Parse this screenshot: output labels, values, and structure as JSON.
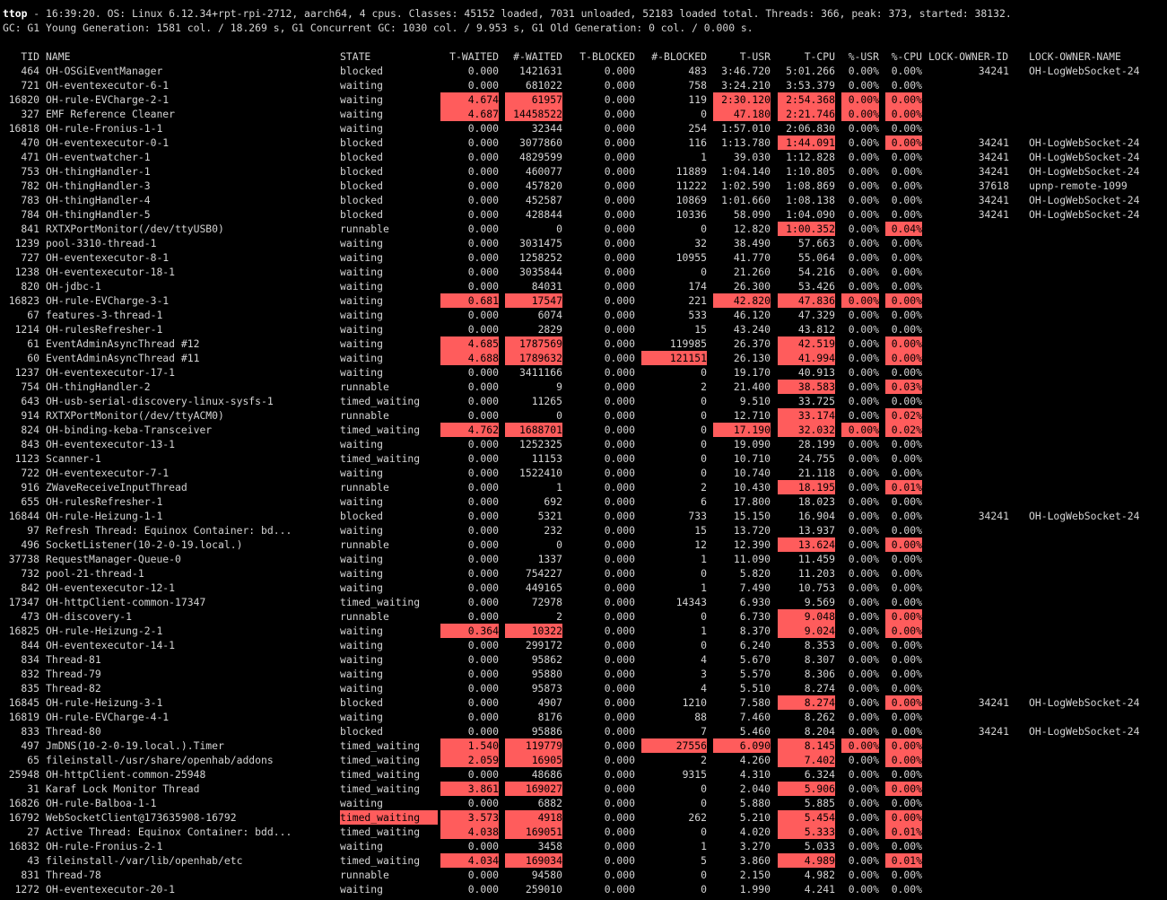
{
  "header": {
    "line1_prog": "ttop",
    "line1_rest": " - 16:39:20. OS: Linux 6.12.34+rpt-rpi-2712, aarch64, 4 cpus. Classes: 45152 loaded, 7031 unloaded, 52183 loaded total. Threads: 366, peak: 373, started: 38132.",
    "line2": "GC: G1 Young Generation: 1581 col. / 18.269 s, G1 Concurrent GC: 1030 col. / 9.953 s, G1 Old Generation: 0 col. / 0.000 s."
  },
  "columns": [
    "TID",
    "NAME",
    "STATE",
    "T-WAITED",
    "#-WAITED",
    "T-BLOCKED",
    "#-BLOCKED",
    "T-USR",
    "T-CPU",
    "%-USR",
    "%-CPU",
    "LOCK-OWNER-ID",
    "LOCK-OWNER-NAME"
  ],
  "highlight_color": "#ff5c5c",
  "rows": [
    [
      "464",
      "OH-OSGiEventManager",
      "blocked",
      "0.000",
      "1421631",
      "0.000",
      "483",
      "3:46.720",
      "5:01.266",
      "0.00%",
      "0.00%",
      "34241",
      "OH-LogWebSocket-24"
    ],
    [
      "721",
      "OH-eventexecutor-6-1",
      "waiting",
      "0.000",
      "681022",
      "0.000",
      "758",
      "3:24.210",
      "3:53.379",
      "0.00%",
      "0.00%",
      "",
      ""
    ],
    [
      "16820",
      "OH-rule-EVCharge-2-1",
      "waiting",
      "4.674",
      "61957",
      "0.000",
      "119",
      "2:30.120",
      "2:54.368",
      "0.00%",
      "0.00%",
      "",
      ""
    ],
    [
      "327",
      "EMF Reference Cleaner",
      "waiting",
      "4.687",
      "14458522",
      "0.000",
      "0",
      "47.180",
      "2:21.746",
      "0.00%",
      "0.00%",
      "",
      ""
    ],
    [
      "16818",
      "OH-rule-Fronius-1-1",
      "waiting",
      "0.000",
      "32344",
      "0.000",
      "254",
      "1:57.010",
      "2:06.830",
      "0.00%",
      "0.00%",
      "",
      ""
    ],
    [
      "470",
      "OH-eventexecutor-0-1",
      "blocked",
      "0.000",
      "3077860",
      "0.000",
      "116",
      "1:13.780",
      "1:44.091",
      "0.00%",
      "0.00%",
      "34241",
      "OH-LogWebSocket-24"
    ],
    [
      "471",
      "OH-eventwatcher-1",
      "blocked",
      "0.000",
      "4829599",
      "0.000",
      "1",
      "39.030",
      "1:12.828",
      "0.00%",
      "0.00%",
      "34241",
      "OH-LogWebSocket-24"
    ],
    [
      "753",
      "OH-thingHandler-1",
      "blocked",
      "0.000",
      "460077",
      "0.000",
      "11889",
      "1:04.140",
      "1:10.805",
      "0.00%",
      "0.00%",
      "34241",
      "OH-LogWebSocket-24"
    ],
    [
      "782",
      "OH-thingHandler-3",
      "blocked",
      "0.000",
      "457820",
      "0.000",
      "11222",
      "1:02.590",
      "1:08.869",
      "0.00%",
      "0.00%",
      "37618",
      "upnp-remote-1099"
    ],
    [
      "783",
      "OH-thingHandler-4",
      "blocked",
      "0.000",
      "452587",
      "0.000",
      "10869",
      "1:01.660",
      "1:08.138",
      "0.00%",
      "0.00%",
      "34241",
      "OH-LogWebSocket-24"
    ],
    [
      "784",
      "OH-thingHandler-5",
      "blocked",
      "0.000",
      "428844",
      "0.000",
      "10336",
      "58.090",
      "1:04.090",
      "0.00%",
      "0.00%",
      "34241",
      "OH-LogWebSocket-24"
    ],
    [
      "841",
      "RXTXPortMonitor(/dev/ttyUSB0)",
      "runnable",
      "0.000",
      "0",
      "0.000",
      "0",
      "12.820",
      "1:00.352",
      "0.00%",
      "0.04%",
      "",
      ""
    ],
    [
      "1239",
      "pool-3310-thread-1",
      "waiting",
      "0.000",
      "3031475",
      "0.000",
      "32",
      "38.490",
      "57.663",
      "0.00%",
      "0.00%",
      "",
      ""
    ],
    [
      "727",
      "OH-eventexecutor-8-1",
      "waiting",
      "0.000",
      "1258252",
      "0.000",
      "10955",
      "41.770",
      "55.064",
      "0.00%",
      "0.00%",
      "",
      ""
    ],
    [
      "1238",
      "OH-eventexecutor-18-1",
      "waiting",
      "0.000",
      "3035844",
      "0.000",
      "0",
      "21.260",
      "54.216",
      "0.00%",
      "0.00%",
      "",
      ""
    ],
    [
      "820",
      "OH-jdbc-1",
      "waiting",
      "0.000",
      "84031",
      "0.000",
      "174",
      "26.300",
      "53.426",
      "0.00%",
      "0.00%",
      "",
      ""
    ],
    [
      "16823",
      "OH-rule-EVCharge-3-1",
      "waiting",
      "0.681",
      "17547",
      "0.000",
      "221",
      "42.820",
      "47.836",
      "0.00%",
      "0.00%",
      "",
      ""
    ],
    [
      "67",
      "features-3-thread-1",
      "waiting",
      "0.000",
      "6074",
      "0.000",
      "533",
      "46.120",
      "47.329",
      "0.00%",
      "0.00%",
      "",
      ""
    ],
    [
      "1214",
      "OH-rulesRefresher-1",
      "waiting",
      "0.000",
      "2829",
      "0.000",
      "15",
      "43.240",
      "43.812",
      "0.00%",
      "0.00%",
      "",
      ""
    ],
    [
      "61",
      "EventAdminAsyncThread #12",
      "waiting",
      "4.685",
      "1787569",
      "0.000",
      "119985",
      "26.370",
      "42.519",
      "0.00%",
      "0.00%",
      "",
      ""
    ],
    [
      "60",
      "EventAdminAsyncThread #11",
      "waiting",
      "4.688",
      "1789632",
      "0.000",
      "121151",
      "26.130",
      "41.994",
      "0.00%",
      "0.00%",
      "",
      ""
    ],
    [
      "1237",
      "OH-eventexecutor-17-1",
      "waiting",
      "0.000",
      "3411166",
      "0.000",
      "0",
      "19.170",
      "40.913",
      "0.00%",
      "0.00%",
      "",
      ""
    ],
    [
      "754",
      "OH-thingHandler-2",
      "runnable",
      "0.000",
      "9",
      "0.000",
      "2",
      "21.400",
      "38.583",
      "0.00%",
      "0.03%",
      "",
      ""
    ],
    [
      "643",
      "OH-usb-serial-discovery-linux-sysfs-1",
      "timed_waiting",
      "0.000",
      "11265",
      "0.000",
      "0",
      "9.510",
      "33.725",
      "0.00%",
      "0.00%",
      "",
      ""
    ],
    [
      "914",
      "RXTXPortMonitor(/dev/ttyACM0)",
      "runnable",
      "0.000",
      "0",
      "0.000",
      "0",
      "12.710",
      "33.174",
      "0.00%",
      "0.02%",
      "",
      ""
    ],
    [
      "824",
      "OH-binding-keba-Transceiver",
      "timed_waiting",
      "4.762",
      "1688701",
      "0.000",
      "0",
      "17.190",
      "32.032",
      "0.00%",
      "0.02%",
      "",
      ""
    ],
    [
      "843",
      "OH-eventexecutor-13-1",
      "waiting",
      "0.000",
      "1252325",
      "0.000",
      "0",
      "19.090",
      "28.199",
      "0.00%",
      "0.00%",
      "",
      ""
    ],
    [
      "1123",
      "Scanner-1",
      "timed_waiting",
      "0.000",
      "11153",
      "0.000",
      "0",
      "10.710",
      "24.755",
      "0.00%",
      "0.00%",
      "",
      ""
    ],
    [
      "722",
      "OH-eventexecutor-7-1",
      "waiting",
      "0.000",
      "1522410",
      "0.000",
      "0",
      "10.740",
      "21.118",
      "0.00%",
      "0.00%",
      "",
      ""
    ],
    [
      "916",
      "ZWaveReceiveInputThread",
      "runnable",
      "0.000",
      "1",
      "0.000",
      "2",
      "10.430",
      "18.195",
      "0.00%",
      "0.01%",
      "",
      ""
    ],
    [
      "655",
      "OH-rulesRefresher-1",
      "waiting",
      "0.000",
      "692",
      "0.000",
      "6",
      "17.800",
      "18.023",
      "0.00%",
      "0.00%",
      "",
      ""
    ],
    [
      "16844",
      "OH-rule-Heizung-1-1",
      "blocked",
      "0.000",
      "5321",
      "0.000",
      "733",
      "15.150",
      "16.904",
      "0.00%",
      "0.00%",
      "34241",
      "OH-LogWebSocket-24"
    ],
    [
      "97",
      "Refresh Thread: Equinox Container: bd...",
      "waiting",
      "0.000",
      "232",
      "0.000",
      "15",
      "13.720",
      "13.937",
      "0.00%",
      "0.00%",
      "",
      ""
    ],
    [
      "496",
      "SocketListener(10-2-0-19.local.)",
      "runnable",
      "0.000",
      "0",
      "0.000",
      "12",
      "12.390",
      "13.624",
      "0.00%",
      "0.00%",
      "",
      ""
    ],
    [
      "37738",
      "RequestManager-Queue-0",
      "waiting",
      "0.000",
      "1337",
      "0.000",
      "1",
      "11.090",
      "11.459",
      "0.00%",
      "0.00%",
      "",
      ""
    ],
    [
      "732",
      "pool-21-thread-1",
      "waiting",
      "0.000",
      "754227",
      "0.000",
      "0",
      "5.820",
      "11.203",
      "0.00%",
      "0.00%",
      "",
      ""
    ],
    [
      "842",
      "OH-eventexecutor-12-1",
      "waiting",
      "0.000",
      "449165",
      "0.000",
      "1",
      "7.490",
      "10.753",
      "0.00%",
      "0.00%",
      "",
      ""
    ],
    [
      "17347",
      "OH-httpClient-common-17347",
      "timed_waiting",
      "0.000",
      "72978",
      "0.000",
      "14343",
      "6.930",
      "9.569",
      "0.00%",
      "0.00%",
      "",
      ""
    ],
    [
      "473",
      "OH-discovery-1",
      "runnable",
      "0.000",
      "2",
      "0.000",
      "0",
      "6.730",
      "9.048",
      "0.00%",
      "0.00%",
      "",
      ""
    ],
    [
      "16825",
      "OH-rule-Heizung-2-1",
      "waiting",
      "0.364",
      "10322",
      "0.000",
      "1",
      "8.370",
      "9.024",
      "0.00%",
      "0.00%",
      "",
      ""
    ],
    [
      "844",
      "OH-eventexecutor-14-1",
      "waiting",
      "0.000",
      "299172",
      "0.000",
      "0",
      "6.240",
      "8.353",
      "0.00%",
      "0.00%",
      "",
      ""
    ],
    [
      "834",
      "Thread-81",
      "waiting",
      "0.000",
      "95862",
      "0.000",
      "4",
      "5.670",
      "8.307",
      "0.00%",
      "0.00%",
      "",
      ""
    ],
    [
      "832",
      "Thread-79",
      "waiting",
      "0.000",
      "95880",
      "0.000",
      "3",
      "5.570",
      "8.306",
      "0.00%",
      "0.00%",
      "",
      ""
    ],
    [
      "835",
      "Thread-82",
      "waiting",
      "0.000",
      "95873",
      "0.000",
      "4",
      "5.510",
      "8.274",
      "0.00%",
      "0.00%",
      "",
      ""
    ],
    [
      "16845",
      "OH-rule-Heizung-3-1",
      "blocked",
      "0.000",
      "4907",
      "0.000",
      "1210",
      "7.580",
      "8.274",
      "0.00%",
      "0.00%",
      "34241",
      "OH-LogWebSocket-24"
    ],
    [
      "16819",
      "OH-rule-EVCharge-4-1",
      "waiting",
      "0.000",
      "8176",
      "0.000",
      "88",
      "7.460",
      "8.262",
      "0.00%",
      "0.00%",
      "",
      ""
    ],
    [
      "833",
      "Thread-80",
      "blocked",
      "0.000",
      "95886",
      "0.000",
      "7",
      "5.460",
      "8.204",
      "0.00%",
      "0.00%",
      "34241",
      "OH-LogWebSocket-24"
    ],
    [
      "497",
      "JmDNS(10-2-0-19.local.).Timer",
      "timed_waiting",
      "1.540",
      "119779",
      "0.000",
      "27556",
      "6.090",
      "8.145",
      "0.00%",
      "0.00%",
      "",
      ""
    ],
    [
      "65",
      "fileinstall-/usr/share/openhab/addons",
      "timed_waiting",
      "2.059",
      "16905",
      "0.000",
      "2",
      "4.260",
      "7.402",
      "0.00%",
      "0.00%",
      "",
      ""
    ],
    [
      "25948",
      "OH-httpClient-common-25948",
      "timed_waiting",
      "0.000",
      "48686",
      "0.000",
      "9315",
      "4.310",
      "6.324",
      "0.00%",
      "0.00%",
      "",
      ""
    ],
    [
      "31",
      "Karaf Lock Monitor Thread",
      "timed_waiting",
      "3.861",
      "169027",
      "0.000",
      "0",
      "2.040",
      "5.906",
      "0.00%",
      "0.00%",
      "",
      ""
    ],
    [
      "16826",
      "OH-rule-Balboa-1-1",
      "waiting",
      "0.000",
      "6882",
      "0.000",
      "0",
      "5.880",
      "5.885",
      "0.00%",
      "0.00%",
      "",
      ""
    ],
    [
      "16792",
      "WebSocketClient@173635908-16792",
      "timed_waiting",
      "3.573",
      "4918",
      "0.000",
      "262",
      "5.210",
      "5.454",
      "0.00%",
      "0.00%",
      "",
      ""
    ],
    [
      "27",
      "Active Thread: Equinox Container: bdd...",
      "timed_waiting",
      "4.038",
      "169051",
      "0.000",
      "0",
      "4.020",
      "5.333",
      "0.00%",
      "0.01%",
      "",
      ""
    ],
    [
      "16832",
      "OH-rule-Fronius-2-1",
      "waiting",
      "0.000",
      "3458",
      "0.000",
      "1",
      "3.270",
      "5.033",
      "0.00%",
      "0.00%",
      "",
      ""
    ],
    [
      "43",
      "fileinstall-/var/lib/openhab/etc",
      "timed_waiting",
      "4.034",
      "169034",
      "0.000",
      "5",
      "3.860",
      "4.989",
      "0.00%",
      "0.01%",
      "",
      ""
    ],
    [
      "831",
      "Thread-78",
      "runnable",
      "0.000",
      "94580",
      "0.000",
      "0",
      "2.150",
      "4.982",
      "0.00%",
      "0.00%",
      "",
      ""
    ],
    [
      "1272",
      "OH-eventexecutor-20-1",
      "waiting",
      "0.000",
      "259010",
      "0.000",
      "0",
      "1.990",
      "4.241",
      "0.00%",
      "0.00%",
      "",
      ""
    ]
  ],
  "highlights": [
    [
      2,
      3
    ],
    [
      2,
      4
    ],
    [
      2,
      7
    ],
    [
      2,
      8
    ],
    [
      2,
      9
    ],
    [
      2,
      10
    ],
    [
      3,
      3
    ],
    [
      3,
      4
    ],
    [
      3,
      7
    ],
    [
      3,
      8
    ],
    [
      3,
      9
    ],
    [
      3,
      10
    ],
    [
      5,
      8
    ],
    [
      5,
      10
    ],
    [
      11,
      8
    ],
    [
      11,
      10
    ],
    [
      16,
      3
    ],
    [
      16,
      4
    ],
    [
      16,
      7
    ],
    [
      16,
      8
    ],
    [
      16,
      9
    ],
    [
      16,
      10
    ],
    [
      19,
      3
    ],
    [
      19,
      4
    ],
    [
      19,
      8
    ],
    [
      19,
      10
    ],
    [
      20,
      3
    ],
    [
      20,
      4
    ],
    [
      20,
      6
    ],
    [
      20,
      8
    ],
    [
      20,
      10
    ],
    [
      22,
      8
    ],
    [
      22,
      10
    ],
    [
      24,
      8
    ],
    [
      24,
      10
    ],
    [
      25,
      3
    ],
    [
      25,
      4
    ],
    [
      25,
      7
    ],
    [
      25,
      8
    ],
    [
      25,
      9
    ],
    [
      25,
      10
    ],
    [
      29,
      8
    ],
    [
      29,
      10
    ],
    [
      33,
      8
    ],
    [
      33,
      10
    ],
    [
      38,
      8
    ],
    [
      38,
      10
    ],
    [
      39,
      3
    ],
    [
      39,
      4
    ],
    [
      39,
      8
    ],
    [
      39,
      10
    ],
    [
      44,
      8
    ],
    [
      44,
      10
    ],
    [
      47,
      3
    ],
    [
      47,
      4
    ],
    [
      47,
      6
    ],
    [
      47,
      7
    ],
    [
      47,
      8
    ],
    [
      47,
      9
    ],
    [
      47,
      10
    ],
    [
      48,
      3
    ],
    [
      48,
      4
    ],
    [
      48,
      8
    ],
    [
      48,
      10
    ],
    [
      50,
      3
    ],
    [
      50,
      4
    ],
    [
      50,
      8
    ],
    [
      50,
      10
    ],
    [
      52,
      2
    ],
    [
      52,
      3
    ],
    [
      52,
      4
    ],
    [
      52,
      8
    ],
    [
      52,
      10
    ],
    [
      53,
      3
    ],
    [
      53,
      4
    ],
    [
      53,
      8
    ],
    [
      53,
      10
    ],
    [
      55,
      3
    ],
    [
      55,
      4
    ],
    [
      55,
      8
    ],
    [
      55,
      10
    ]
  ]
}
